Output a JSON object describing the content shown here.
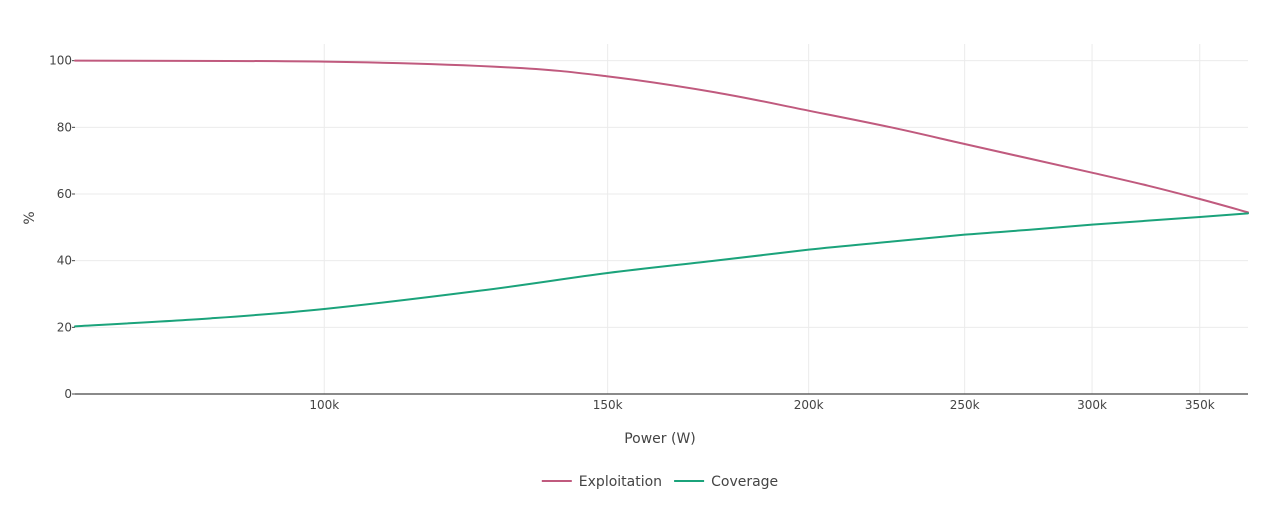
{
  "chart_data": {
    "type": "line",
    "xlabel": "Power (W)",
    "ylabel": "%",
    "x_scale": "log",
    "xlim": [
      70000,
      375000
    ],
    "ylim": [
      0,
      105
    ],
    "x_ticks": [
      {
        "value": 100000,
        "label": "100k"
      },
      {
        "value": 150000,
        "label": "150k"
      },
      {
        "value": 200000,
        "label": "200k"
      },
      {
        "value": 250000,
        "label": "250k"
      },
      {
        "value": 300000,
        "label": "300k"
      },
      {
        "value": 350000,
        "label": "350k"
      }
    ],
    "y_ticks": [
      {
        "value": 0,
        "label": "0"
      },
      {
        "value": 20,
        "label": "20"
      },
      {
        "value": 40,
        "label": "40"
      },
      {
        "value": 60,
        "label": "60"
      },
      {
        "value": 80,
        "label": "80"
      },
      {
        "value": 100,
        "label": "100"
      }
    ],
    "grid": true,
    "legend": "bottom-center",
    "series": [
      {
        "name": "Exploitation",
        "color": "#c05a7e",
        "x": [
          70000,
          100000,
          130000,
          150000,
          175000,
          200000,
          225000,
          250000,
          275000,
          300000,
          325000,
          350000,
          375000
        ],
        "y": [
          100,
          99.7,
          98,
          95.3,
          90.5,
          85,
          80,
          75,
          70.5,
          66.4,
          62.5,
          58.5,
          54.5
        ]
      },
      {
        "name": "Coverage",
        "color": "#1ba37b",
        "x": [
          70000,
          85000,
          100000,
          125000,
          150000,
          175000,
          200000,
          225000,
          250000,
          275000,
          300000,
          325000,
          350000,
          375000
        ],
        "y": [
          20.3,
          22.7,
          25.5,
          31,
          36.3,
          40,
          43.3,
          45.7,
          47.8,
          49.3,
          50.8,
          52,
          53.1,
          54.2
        ]
      }
    ]
  }
}
